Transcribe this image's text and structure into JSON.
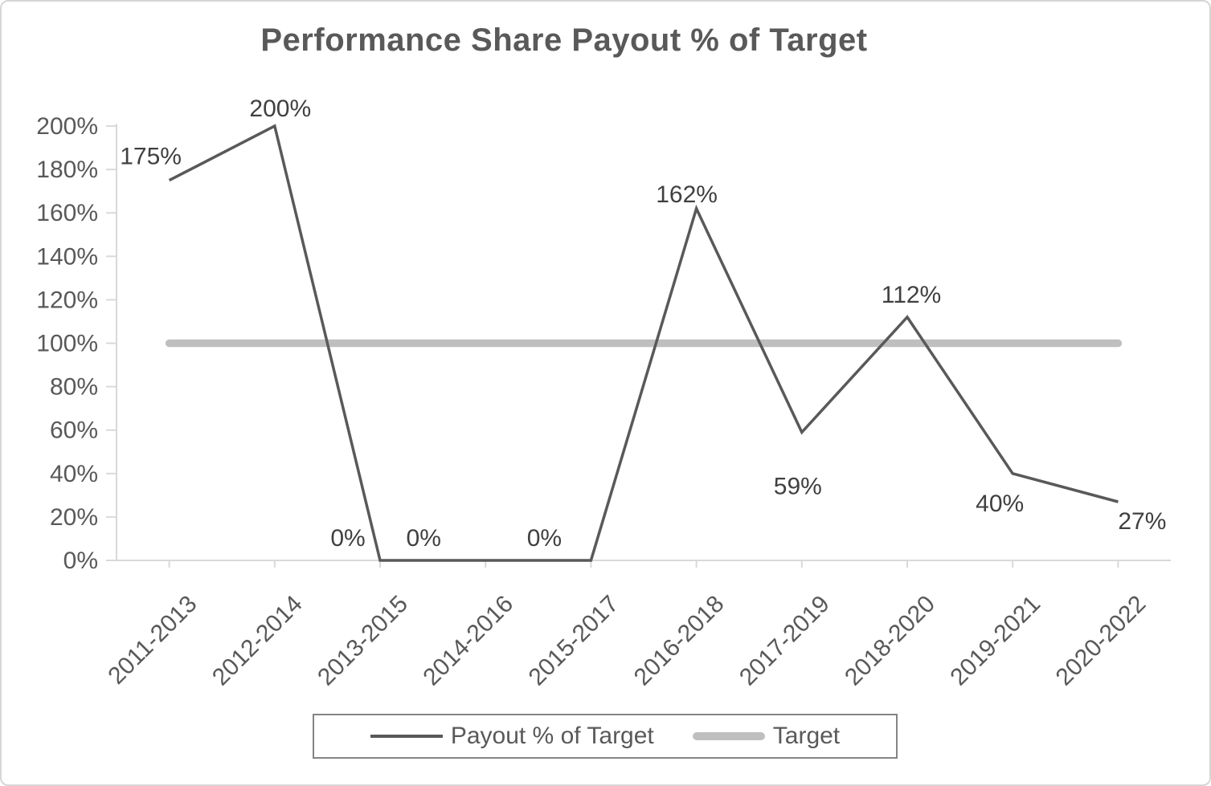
{
  "chart_data": {
    "type": "line",
    "title": "Performance Share Payout % of Target",
    "categories": [
      "2011-2013",
      "2012-2014",
      "2013-2015",
      "2014-2016",
      "2015-2017",
      "2016-2018",
      "2017-2019",
      "2018-2020",
      "2019-2021",
      "2020-2022"
    ],
    "series": [
      {
        "name": "Payout % of Target",
        "values": [
          175,
          200,
          0,
          0,
          0,
          162,
          59,
          112,
          40,
          27
        ],
        "color": "#595959",
        "style": "thin"
      },
      {
        "name": "Target",
        "values": [
          100,
          100,
          100,
          100,
          100,
          100,
          100,
          100,
          100,
          100
        ],
        "color": "#bfbfbf",
        "style": "thick"
      }
    ],
    "data_labels": [
      "175%",
      "200%",
      "0%",
      "0%",
      "0%",
      "162%",
      "59%",
      "112%",
      "40%",
      "27%"
    ],
    "ylim": [
      0,
      200
    ],
    "ytick_step": 20,
    "ytick_labels": [
      "0%",
      "20%",
      "40%",
      "60%",
      "80%",
      "100%",
      "120%",
      "140%",
      "160%",
      "180%",
      "200%"
    ],
    "grid": false,
    "legend_position": "bottom",
    "colors": {
      "axis_line": "#d9d9d9",
      "tick_label_text": "#595959",
      "data_label_text": "#404040",
      "title_text": "#595959",
      "payout_line": "#595959",
      "target_line": "#bfbfbf"
    }
  },
  "legend": {
    "items": [
      {
        "label": "Payout % of Target"
      },
      {
        "label": "Target"
      }
    ]
  }
}
